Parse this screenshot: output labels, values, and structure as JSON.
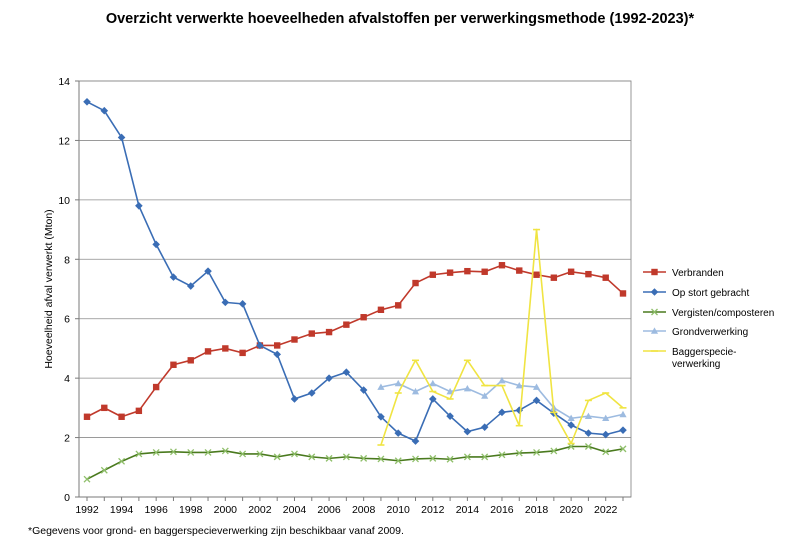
{
  "chart_data": {
    "type": "line",
    "title": "Overzicht verwerkte hoeveelheden afvalstoffen per verwerkingsmethode (1992-2023)*",
    "ylabel": "Hoeveelheid afval verwerkt (Mton)",
    "xlabel": "",
    "xlim": [
      1992,
      2023
    ],
    "ylim": [
      0,
      14
    ],
    "y_ticks": [
      0,
      2,
      4,
      6,
      8,
      10,
      12,
      14
    ],
    "x_ticks": [
      1992,
      1994,
      1996,
      1998,
      2000,
      2002,
      2004,
      2006,
      2008,
      2010,
      2012,
      2014,
      2016,
      2018,
      2020,
      2022
    ],
    "grid": "horizontal",
    "legend_position": "right",
    "series": [
      {
        "name": "Verbranden",
        "color": "#c0392b",
        "marker": "square",
        "x": [
          1992,
          1993,
          1994,
          1995,
          1996,
          1997,
          1998,
          1999,
          2000,
          2001,
          2002,
          2003,
          2004,
          2005,
          2006,
          2007,
          2008,
          2009,
          2010,
          2011,
          2012,
          2013,
          2014,
          2015,
          2016,
          2017,
          2018,
          2019,
          2020,
          2021,
          2022,
          2023
        ],
        "values": [
          2.7,
          3.0,
          2.7,
          2.9,
          3.7,
          4.45,
          4.6,
          4.9,
          5.0,
          4.85,
          5.1,
          5.1,
          5.3,
          5.5,
          5.55,
          5.8,
          6.05,
          6.3,
          6.45,
          7.2,
          7.48,
          7.55,
          7.6,
          7.58,
          7.8,
          7.62,
          7.48,
          7.38,
          7.58,
          7.5,
          7.38,
          6.85
        ]
      },
      {
        "name": "Op stort gebracht",
        "color": "#3a6db5",
        "marker": "diamond",
        "x": [
          1992,
          1993,
          1994,
          1995,
          1996,
          1997,
          1998,
          1999,
          2000,
          2001,
          2002,
          2003,
          2004,
          2005,
          2006,
          2007,
          2008,
          2009,
          2010,
          2011,
          2012,
          2013,
          2014,
          2015,
          2016,
          2017,
          2018,
          2019,
          2020,
          2021,
          2022,
          2023
        ],
        "values": [
          13.3,
          13.0,
          12.1,
          9.8,
          8.5,
          7.4,
          7.1,
          7.6,
          6.55,
          6.5,
          5.1,
          4.8,
          3.3,
          3.5,
          4.0,
          4.2,
          3.6,
          2.7,
          2.15,
          1.88,
          3.3,
          2.72,
          2.2,
          2.35,
          2.85,
          2.92,
          3.25,
          2.82,
          2.42,
          2.15,
          2.1,
          2.25
        ]
      },
      {
        "name": "Vergisten/composteren",
        "color": "#4a7a1e",
        "marker": "x",
        "x": [
          1992,
          1993,
          1994,
          1995,
          1996,
          1997,
          1998,
          1999,
          2000,
          2001,
          2002,
          2003,
          2004,
          2005,
          2006,
          2007,
          2008,
          2009,
          2010,
          2011,
          2012,
          2013,
          2014,
          2015,
          2016,
          2017,
          2018,
          2019,
          2020,
          2021,
          2022,
          2023
        ],
        "values": [
          0.6,
          0.9,
          1.2,
          1.45,
          1.5,
          1.52,
          1.5,
          1.5,
          1.55,
          1.45,
          1.45,
          1.35,
          1.45,
          1.35,
          1.3,
          1.35,
          1.3,
          1.28,
          1.22,
          1.28,
          1.3,
          1.27,
          1.35,
          1.35,
          1.42,
          1.48,
          1.5,
          1.55,
          1.7,
          1.7,
          1.52,
          1.62
        ]
      },
      {
        "name": "Grondverwerking",
        "color": "#9dbbe0",
        "marker": "triangle",
        "x": [
          2009,
          2010,
          2011,
          2012,
          2013,
          2014,
          2015,
          2016,
          2017,
          2018,
          2019,
          2020,
          2021,
          2022,
          2023
        ],
        "values": [
          3.7,
          3.82,
          3.55,
          3.82,
          3.55,
          3.65,
          3.4,
          3.92,
          3.75,
          3.7,
          3.0,
          2.65,
          2.72,
          2.65,
          2.78
        ]
      },
      {
        "name": "Baggerspecie-verwerking",
        "legend_lines": [
          "Baggerspecie-",
          "verwerking"
        ],
        "color": "#f0e442",
        "marker": "dash",
        "x": [
          2009,
          2010,
          2011,
          2012,
          2013,
          2014,
          2015,
          2016,
          2017,
          2018,
          2019,
          2020,
          2021,
          2022,
          2023
        ],
        "values": [
          1.75,
          3.5,
          4.6,
          3.55,
          3.3,
          4.6,
          3.75,
          3.75,
          2.4,
          9.0,
          2.85,
          1.8,
          3.25,
          3.5,
          3.0
        ]
      }
    ]
  },
  "footnote": "*Gegevens voor grond- en baggerspecieverwerking zijn beschikbaar vanaf 2009."
}
